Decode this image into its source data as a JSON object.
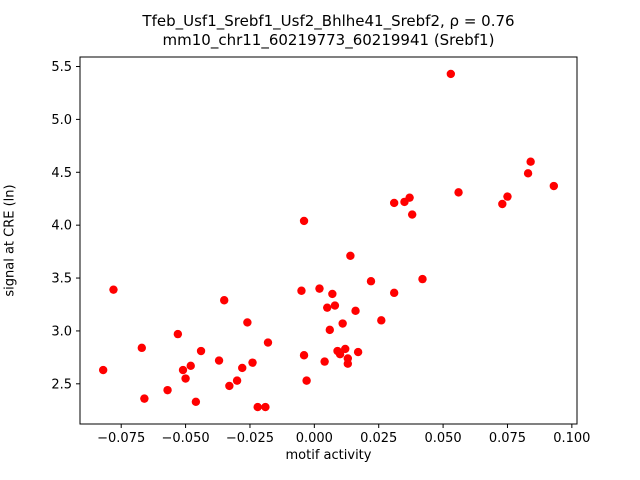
{
  "chart_data": {
    "type": "scatter",
    "title_line1": "Tfeb_Usf1_Srebf1_Usf2_Bhlhe41_Srebf2, ρ = 0.76",
    "title_line2": "mm10_chr11_60219773_60219941 (Srebf1)",
    "xlabel": "motif activity",
    "ylabel": "signal at CRE (ln)",
    "marker_color": "#ff0000",
    "axis_color": "#000000",
    "legend": "none",
    "grid": false,
    "xlim": [
      -0.091,
      0.102
    ],
    "ylim": [
      2.12,
      5.59
    ],
    "xticks": [
      -0.075,
      -0.05,
      -0.025,
      0.0,
      0.025,
      0.05,
      0.075,
      0.1
    ],
    "yticks": [
      2.5,
      3.0,
      3.5,
      4.0,
      4.5,
      5.0,
      5.5
    ],
    "points": [
      [
        -0.082,
        2.63
      ],
      [
        -0.078,
        3.39
      ],
      [
        -0.067,
        2.84
      ],
      [
        -0.066,
        2.36
      ],
      [
        -0.057,
        2.44
      ],
      [
        -0.053,
        2.97
      ],
      [
        -0.051,
        2.63
      ],
      [
        -0.05,
        2.55
      ],
      [
        -0.048,
        2.67
      ],
      [
        -0.046,
        2.33
      ],
      [
        -0.044,
        2.81
      ],
      [
        -0.037,
        2.72
      ],
      [
        -0.035,
        3.29
      ],
      [
        -0.033,
        2.48
      ],
      [
        -0.03,
        2.53
      ],
      [
        -0.028,
        2.65
      ],
      [
        -0.026,
        3.08
      ],
      [
        -0.024,
        2.7
      ],
      [
        -0.022,
        2.28
      ],
      [
        -0.019,
        2.28
      ],
      [
        -0.018,
        2.89
      ],
      [
        -0.005,
        3.38
      ],
      [
        -0.004,
        4.04
      ],
      [
        -0.004,
        2.77
      ],
      [
        -0.003,
        2.53
      ],
      [
        0.002,
        3.4
      ],
      [
        0.004,
        2.71
      ],
      [
        0.005,
        3.22
      ],
      [
        0.006,
        3.01
      ],
      [
        0.007,
        3.35
      ],
      [
        0.008,
        3.24
      ],
      [
        0.009,
        2.81
      ],
      [
        0.01,
        2.78
      ],
      [
        0.011,
        3.07
      ],
      [
        0.012,
        2.83
      ],
      [
        0.013,
        2.74
      ],
      [
        0.013,
        2.69
      ],
      [
        0.014,
        3.71
      ],
      [
        0.016,
        3.19
      ],
      [
        0.017,
        2.8
      ],
      [
        0.022,
        3.47
      ],
      [
        0.026,
        3.1
      ],
      [
        0.031,
        3.36
      ],
      [
        0.031,
        4.21
      ],
      [
        0.035,
        4.22
      ],
      [
        0.037,
        4.26
      ],
      [
        0.038,
        4.1
      ],
      [
        0.042,
        3.49
      ],
      [
        0.053,
        5.43
      ],
      [
        0.056,
        4.31
      ],
      [
        0.073,
        4.2
      ],
      [
        0.075,
        4.27
      ],
      [
        0.083,
        4.49
      ],
      [
        0.084,
        4.6
      ],
      [
        0.093,
        4.37
      ]
    ]
  }
}
